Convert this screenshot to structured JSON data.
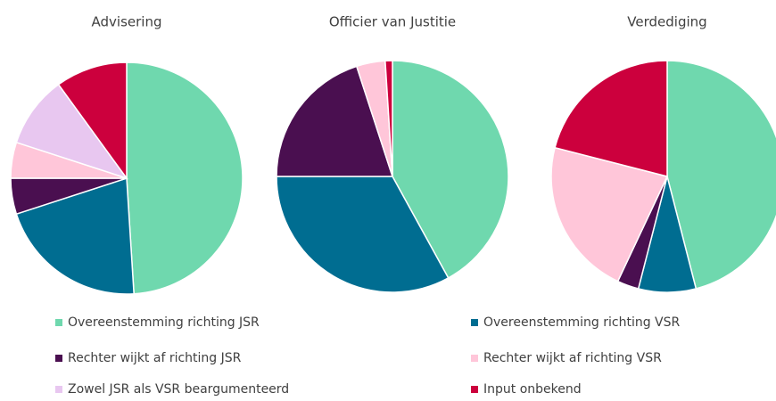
{
  "chart_data": [
    {
      "type": "pie",
      "title": "Advisering",
      "categories": [
        "Overeenstemming richting JSR",
        "Overeenstemming richting VSR",
        "Rechter wijkt af richting JSR",
        "Rechter wijkt af richting VSR",
        "Zowel JSR als VSR beargumenteerd",
        "Input onbekend"
      ],
      "values": [
        49,
        21,
        5,
        5,
        10,
        10
      ],
      "colors": [
        "#6fd8ae",
        "#006d91",
        "#4a0f50",
        "#ffc6d9",
        "#e8c7f0",
        "#cc003d"
      ]
    },
    {
      "type": "pie",
      "title": "Officier van Justitie",
      "categories": [
        "Overeenstemming richting JSR",
        "Overeenstemming richting VSR",
        "Rechter wijkt af richting JSR",
        "Rechter wijkt af richting VSR",
        "Zowel JSR als VSR beargumenteerd",
        "Input onbekend"
      ],
      "values": [
        42,
        33,
        20,
        4,
        0,
        1
      ],
      "colors": [
        "#6fd8ae",
        "#006d91",
        "#4a0f50",
        "#ffc6d9",
        "#e8c7f0",
        "#cc003d"
      ]
    },
    {
      "type": "pie",
      "title": "Verdediging",
      "categories": [
        "Overeenstemming richting JSR",
        "Overeenstemming richting VSR",
        "Rechter wijkt af richting JSR",
        "Rechter wijkt af richting VSR",
        "Zowel JSR als VSR beargumenteerd",
        "Input onbekend"
      ],
      "values": [
        46,
        8,
        3,
        22,
        0,
        21
      ],
      "colors": [
        "#6fd8ae",
        "#006d91",
        "#4a0f50",
        "#ffc6d9",
        "#e8c7f0",
        "#cc003d"
      ]
    }
  ]
}
